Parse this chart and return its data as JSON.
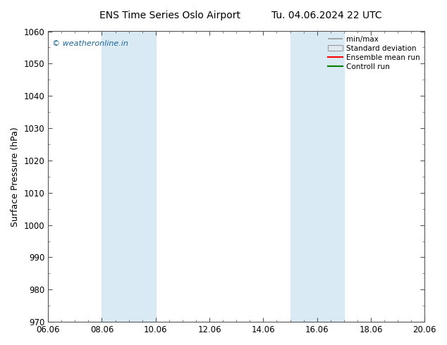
{
  "title_left": "ENS Time Series Oslo Airport",
  "title_right": "Tu. 04.06.2024 22 UTC",
  "ylabel": "Surface Pressure (hPa)",
  "ylim": [
    970,
    1060
  ],
  "yticks": [
    970,
    980,
    990,
    1000,
    1010,
    1020,
    1030,
    1040,
    1050,
    1060
  ],
  "xtick_labels": [
    "06.06",
    "08.06",
    "10.06",
    "12.06",
    "14.06",
    "16.06",
    "18.06",
    "20.06"
  ],
  "xtick_positions": [
    0,
    2,
    4,
    6,
    8,
    10,
    12,
    14
  ],
  "xlim": [
    0,
    14
  ],
  "shaded_bands": [
    {
      "x_start": 2,
      "x_end": 4
    },
    {
      "x_start": 9,
      "x_end": 11
    }
  ],
  "shade_color": "#daeaf5",
  "watermark_text": "© weatheronline.in",
  "watermark_color": "#1a6699",
  "legend_labels": [
    "min/max",
    "Standard deviation",
    "Ensemble mean run",
    "Controll run"
  ],
  "legend_line_colors": [
    "#999999",
    "#cccccc",
    "#ff0000",
    "#008000"
  ],
  "background_color": "#ffffff",
  "title_fontsize": 10,
  "ylabel_fontsize": 9,
  "tick_fontsize": 8.5
}
